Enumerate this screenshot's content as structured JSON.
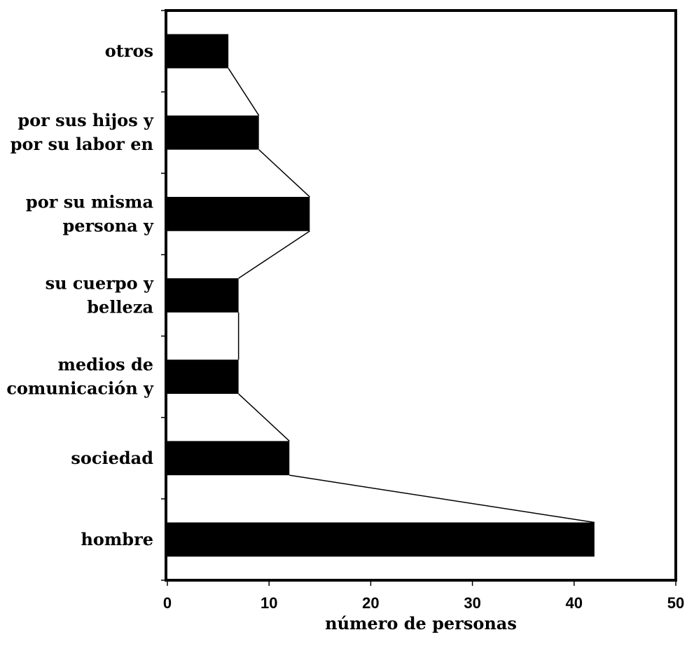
{
  "chart_data": {
    "type": "bar",
    "orientation": "horizontal",
    "categories": [
      [
        "hombre"
      ],
      [
        "sociedad"
      ],
      [
        "medios de",
        "comunicación y"
      ],
      [
        "su cuerpo y",
        "belleza"
      ],
      [
        "por su misma",
        "persona y"
      ],
      [
        "por sus hijos y",
        "por su labor en"
      ],
      [
        "otros"
      ]
    ],
    "values": [
      42,
      12,
      7,
      7,
      14,
      9,
      6
    ],
    "xlabel": "número de personas",
    "ylabel": "",
    "xlim": [
      0,
      50
    ],
    "xticks": [
      0,
      10,
      20,
      30,
      40,
      50
    ],
    "grid": false,
    "bar_color": "#000000",
    "connector_line": true
  }
}
